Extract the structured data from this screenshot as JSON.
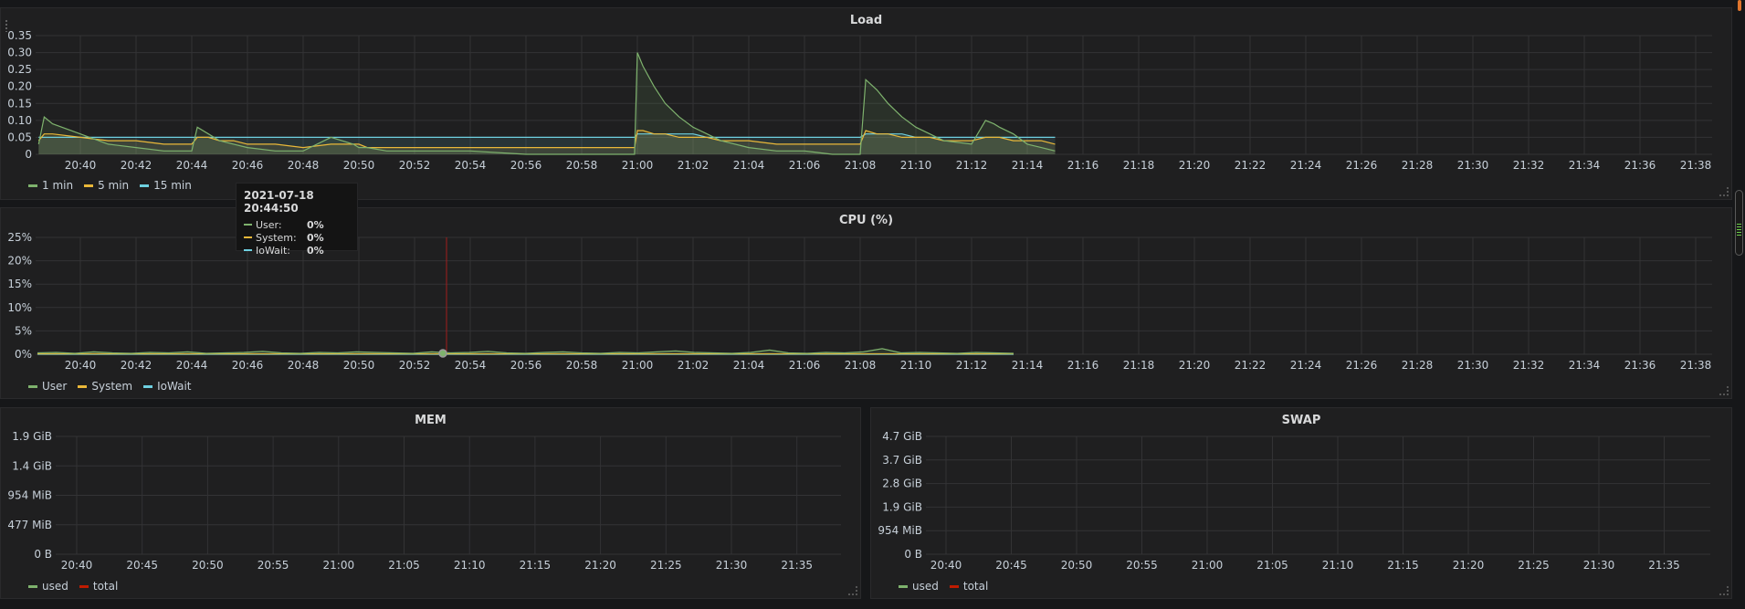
{
  "panels": {
    "load": {
      "title": "Load",
      "legend": [
        {
          "name": "1 min",
          "color": "#7eb26d"
        },
        {
          "name": "5 min",
          "color": "#eab839"
        },
        {
          "name": "15 min",
          "color": "#6ed0e0"
        }
      ]
    },
    "cpu": {
      "title": "CPU (%)",
      "legend": [
        {
          "name": "User",
          "color": "#7eb26d"
        },
        {
          "name": "System",
          "color": "#eab839"
        },
        {
          "name": "IoWait",
          "color": "#6ed0e0"
        }
      ]
    },
    "mem": {
      "title": "MEM",
      "legend": [
        {
          "name": "used",
          "color": "#7eb26d"
        },
        {
          "name": "total",
          "color": "#bf1b00"
        }
      ]
    },
    "swap": {
      "title": "SWAP",
      "legend": [
        {
          "name": "used",
          "color": "#7eb26d"
        },
        {
          "name": "total",
          "color": "#bf1b00"
        }
      ]
    }
  },
  "tooltip": {
    "time": "2021-07-18 20:44:50",
    "rows": [
      {
        "label": "User:",
        "value": "0%",
        "color": "#7eb26d"
      },
      {
        "label": "System:",
        "value": "0%",
        "color": "#eab839"
      },
      {
        "label": "IoWait:",
        "value": "0%",
        "color": "#6ed0e0"
      }
    ]
  },
  "chart_data": [
    {
      "type": "line",
      "title": "Load",
      "y_ticks": [
        "0",
        "0.05",
        "0.10",
        "0.15",
        "0.20",
        "0.25",
        "0.30",
        "0.35"
      ],
      "ylim": [
        0,
        0.35
      ],
      "x_ticks": [
        "20:40",
        "20:42",
        "20:44",
        "20:46",
        "20:48",
        "20:50",
        "20:52",
        "20:54",
        "20:56",
        "20:58",
        "21:00",
        "21:02",
        "21:04",
        "21:06",
        "21:08",
        "21:10",
        "21:12",
        "21:14",
        "21:16",
        "21:18",
        "21:20",
        "21:22",
        "21:24",
        "21:26",
        "21:28",
        "21:30",
        "21:32",
        "21:34",
        "21:36",
        "21:38"
      ],
      "x_minutes": [
        -1.5,
        -1.3,
        -1,
        0,
        1,
        2,
        3,
        4,
        4.2,
        4.6,
        5,
        5.5,
        6,
        7,
        8,
        9,
        9.8,
        10,
        10.3,
        11,
        12,
        14,
        16,
        19.9,
        20,
        20.2,
        20.6,
        21,
        21.5,
        22,
        22.5,
        23,
        24,
        25,
        26,
        27,
        28,
        28.2,
        28.6,
        29,
        29.5,
        30,
        30.5,
        31,
        32,
        32.5,
        32.8,
        33,
        33.5,
        34,
        34.5,
        35
      ],
      "series": [
        {
          "name": "1 min",
          "values": [
            0.03,
            0.11,
            0.09,
            0.06,
            0.03,
            0.02,
            0.01,
            0.01,
            0.08,
            0.06,
            0.04,
            0.03,
            0.02,
            0.01,
            0.01,
            0.05,
            0.03,
            0.02,
            0.02,
            0.01,
            0.01,
            0.01,
            0.0,
            0.0,
            0.3,
            0.26,
            0.2,
            0.15,
            0.11,
            0.08,
            0.06,
            0.04,
            0.02,
            0.01,
            0.01,
            0.0,
            0.0,
            0.22,
            0.19,
            0.15,
            0.11,
            0.08,
            0.06,
            0.04,
            0.03,
            0.1,
            0.09,
            0.08,
            0.06,
            0.03,
            0.02,
            0.01
          ]
        },
        {
          "name": "5 min",
          "values": [
            0.04,
            0.06,
            0.06,
            0.05,
            0.04,
            0.04,
            0.03,
            0.03,
            0.05,
            0.05,
            0.04,
            0.04,
            0.03,
            0.03,
            0.02,
            0.03,
            0.03,
            0.03,
            0.02,
            0.02,
            0.02,
            0.02,
            0.02,
            0.02,
            0.07,
            0.07,
            0.06,
            0.06,
            0.05,
            0.05,
            0.05,
            0.04,
            0.04,
            0.03,
            0.03,
            0.03,
            0.03,
            0.07,
            0.06,
            0.06,
            0.05,
            0.05,
            0.05,
            0.04,
            0.04,
            0.05,
            0.05,
            0.05,
            0.04,
            0.04,
            0.04,
            0.03
          ]
        },
        {
          "name": "15 min",
          "values": [
            0.05,
            0.05,
            0.05,
            0.05,
            0.05,
            0.05,
            0.05,
            0.05,
            0.05,
            0.05,
            0.05,
            0.05,
            0.05,
            0.05,
            0.05,
            0.05,
            0.05,
            0.05,
            0.05,
            0.05,
            0.05,
            0.05,
            0.05,
            0.05,
            0.06,
            0.06,
            0.06,
            0.06,
            0.06,
            0.06,
            0.05,
            0.05,
            0.05,
            0.05,
            0.05,
            0.05,
            0.05,
            0.06,
            0.06,
            0.06,
            0.06,
            0.05,
            0.05,
            0.05,
            0.05,
            0.05,
            0.05,
            0.05,
            0.05,
            0.05,
            0.05,
            0.05
          ]
        }
      ]
    },
    {
      "type": "line",
      "title": "CPU (%)",
      "y_ticks": [
        "0%",
        "5%",
        "10%",
        "15%",
        "20%",
        "25%"
      ],
      "ylim": [
        0,
        25
      ],
      "x_ticks": [
        "20:40",
        "20:42",
        "20:44",
        "20:46",
        "20:48",
        "20:50",
        "20:52",
        "20:54",
        "20:56",
        "20:58",
        "21:00",
        "21:02",
        "21:04",
        "21:06",
        "21:08",
        "21:10",
        "21:12",
        "21:14",
        "21:16",
        "21:18",
        "21:20",
        "21:22",
        "21:24",
        "21:26",
        "21:28",
        "21:30",
        "21:32",
        "21:34",
        "21:36",
        "21:38"
      ],
      "series": [
        {
          "name": "User",
          "values": [
            0.3,
            0.4,
            0.2,
            0.5,
            0.3,
            0.2,
            0.4,
            0.3,
            0.5,
            0.2,
            0.3,
            0.4,
            0.6,
            0.3,
            0.2,
            0.4,
            0.3,
            0.5,
            0.4,
            0.3,
            0.2,
            0.5,
            0.3,
            0.4,
            0.6,
            0.3,
            0.2,
            0.4,
            0.5,
            0.3,
            0.2,
            0.4,
            0.3,
            0.5,
            0.7,
            0.4,
            0.3,
            0.2,
            0.4,
            0.9,
            0.3,
            0.2,
            0.4,
            0.3,
            0.5,
            1.2,
            0.3,
            0.4,
            0.3,
            0.2,
            0.4,
            0.3,
            0.2
          ]
        },
        {
          "name": "System",
          "values": [
            0.1,
            0.1,
            0.1,
            0.1,
            0.1,
            0.1,
            0.1,
            0.1,
            0.1,
            0.1,
            0.1,
            0.1,
            0.1,
            0.1,
            0.1,
            0.1,
            0.1,
            0.1,
            0.1,
            0.1,
            0.1,
            0.1,
            0.1,
            0.1,
            0.1,
            0.1,
            0.1,
            0.1,
            0.1,
            0.1,
            0.1,
            0.1,
            0.1,
            0.1,
            0.1,
            0.1,
            0.1,
            0.1,
            0.1,
            0.1,
            0.1,
            0.1,
            0.1,
            0.1,
            0.1,
            0.1,
            0.1,
            0.1,
            0.1,
            0.1,
            0.1,
            0.1,
            0.1
          ]
        },
        {
          "name": "IoWait",
          "values": [
            0,
            0,
            0,
            0,
            0,
            0,
            0,
            0,
            0,
            0,
            0,
            0,
            0,
            0,
            0,
            0,
            0,
            0,
            0,
            0,
            0,
            0,
            0,
            0,
            0,
            0,
            0,
            0,
            0,
            0,
            0,
            0,
            0,
            0,
            0,
            0,
            0,
            0,
            0,
            0,
            0,
            0,
            0,
            0,
            0,
            0,
            0,
            0,
            0,
            0,
            0,
            0,
            0
          ]
        }
      ]
    },
    {
      "type": "line",
      "title": "MEM",
      "y_ticks": [
        "0 B",
        "477 MiB",
        "954 MiB",
        "1.4 GiB",
        "1.9 GiB"
      ],
      "x_ticks": [
        "20:40",
        "20:45",
        "20:50",
        "20:55",
        "21:00",
        "21:05",
        "21:10",
        "21:15",
        "21:20",
        "21:25",
        "21:30",
        "21:35"
      ],
      "series": [
        {
          "name": "used",
          "values": []
        },
        {
          "name": "total",
          "values": []
        }
      ]
    },
    {
      "type": "line",
      "title": "SWAP",
      "y_ticks": [
        "0 B",
        "954 MiB",
        "1.9 GiB",
        "2.8 GiB",
        "3.7 GiB",
        "4.7 GiB"
      ],
      "x_ticks": [
        "20:40",
        "20:45",
        "20:50",
        "20:55",
        "21:00",
        "21:05",
        "21:10",
        "21:15",
        "21:20",
        "21:25",
        "21:30",
        "21:35"
      ],
      "series": [
        {
          "name": "used",
          "values": []
        },
        {
          "name": "total",
          "values": []
        }
      ]
    }
  ]
}
